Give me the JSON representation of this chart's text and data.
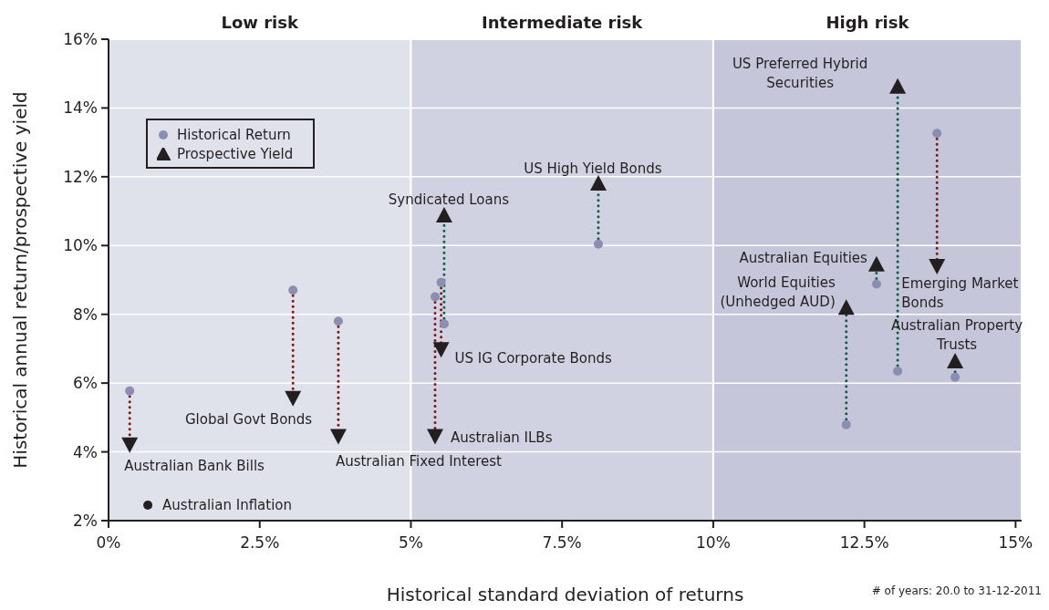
{
  "chart_data": {
    "type": "scatter",
    "xlabel": "Historical standard deviation of returns",
    "ylabel": "Historical annual return/prospective yield",
    "xlim": [
      0,
      15.1
    ],
    "ylim": [
      2,
      16
    ],
    "xticks": [
      {
        "value": 0,
        "label": "0%"
      },
      {
        "value": 2.5,
        "label": "2.5%"
      },
      {
        "value": 5,
        "label": "5%"
      },
      {
        "value": 7.5,
        "label": "7.5%"
      },
      {
        "value": 10,
        "label": "10%"
      },
      {
        "value": 12.5,
        "label": "12.5%"
      },
      {
        "value": 15,
        "label": "15%"
      }
    ],
    "yticks": [
      {
        "value": 2,
        "label": "2%"
      },
      {
        "value": 4,
        "label": "4%"
      },
      {
        "value": 6,
        "label": "6%"
      },
      {
        "value": 8,
        "label": "8%"
      },
      {
        "value": 10,
        "label": "10%"
      },
      {
        "value": 12,
        "label": "12%"
      },
      {
        "value": 14,
        "label": "14%"
      },
      {
        "value": 16,
        "label": "16%"
      }
    ],
    "grid": "y",
    "legend": "top left",
    "bands": [
      {
        "axis": "x",
        "from": 0,
        "to": 5,
        "label": "Low risk",
        "color": "#dfe1eb"
      },
      {
        "axis": "x",
        "from": 5,
        "to": 10,
        "label": "Intermediate risk",
        "color": "#d1d2e1"
      },
      {
        "axis": "x",
        "from": 10,
        "to": 15.1,
        "label": "High risk",
        "color": "#c5c6da"
      }
    ],
    "series": [
      {
        "name": "Historical Return",
        "marker": "circle",
        "color": "#8a8eb0",
        "x": [
          0.35,
          3.05,
          3.8,
          5.4,
          5.5,
          5.55,
          8.1,
          12.2,
          12.7,
          13.05,
          13.7,
          14.0
        ],
        "values": [
          5.77,
          8.7,
          7.8,
          8.51,
          8.93,
          7.72,
          10.04,
          4.79,
          8.88,
          6.35,
          13.26,
          6.17
        ]
      },
      {
        "name": "Prospective Yield",
        "marker": "triangle",
        "color": "#231f20",
        "x": [
          0.35,
          3.05,
          3.8,
          5.4,
          5.5,
          5.55,
          8.1,
          12.2,
          12.7,
          13.05,
          13.7,
          14.0
        ],
        "values": [
          4.21,
          5.56,
          4.45,
          4.45,
          6.98,
          10.88,
          11.81,
          8.2,
          9.46,
          14.63,
          9.4,
          6.64
        ]
      },
      {
        "marker": "circle",
        "color": "#231f20",
        "x": [
          0.65
        ],
        "values": [
          2.45
        ]
      },
      {
        "type": "line",
        "color": "#7a1414",
        "line_style": "dotted",
        "marker": "none",
        "x": [
          0.35,
          0.35
        ],
        "values": [
          5.77,
          4.21
        ]
      },
      {
        "type": "line",
        "color": "#7a1414",
        "line_style": "dotted",
        "marker": "none",
        "x": [
          3.05,
          3.05
        ],
        "values": [
          8.7,
          5.56
        ]
      },
      {
        "type": "line",
        "color": "#7a1414",
        "line_style": "dotted",
        "marker": "none",
        "x": [
          3.8,
          3.8
        ],
        "values": [
          7.8,
          4.45
        ]
      },
      {
        "type": "line",
        "color": "#7a1414",
        "line_style": "dotted",
        "marker": "none",
        "x": [
          5.4,
          5.4
        ],
        "values": [
          8.51,
          4.45
        ]
      },
      {
        "type": "line",
        "color": "#7a1414",
        "line_style": "dotted",
        "marker": "none",
        "x": [
          5.5,
          5.5
        ],
        "values": [
          8.93,
          6.98
        ]
      },
      {
        "type": "line",
        "color": "#0d5a45",
        "line_style": "dotted",
        "marker": "none",
        "x": [
          5.55,
          5.55
        ],
        "values": [
          7.72,
          10.88
        ]
      },
      {
        "type": "line",
        "color": "#0d5a45",
        "line_style": "dotted",
        "marker": "none",
        "x": [
          8.1,
          8.1
        ],
        "values": [
          10.04,
          11.81
        ]
      },
      {
        "type": "line",
        "color": "#0d5a45",
        "line_style": "dotted",
        "marker": "none",
        "x": [
          12.2,
          12.2
        ],
        "values": [
          4.79,
          8.2
        ]
      },
      {
        "type": "line",
        "color": "#0d5a45",
        "line_style": "dotted",
        "marker": "none",
        "x": [
          12.7,
          12.7
        ],
        "values": [
          8.88,
          9.46
        ]
      },
      {
        "type": "line",
        "color": "#0d5a45",
        "line_style": "dotted",
        "marker": "none",
        "x": [
          13.05,
          13.05
        ],
        "values": [
          6.35,
          14.63
        ]
      },
      {
        "type": "line",
        "color": "#7a1414",
        "line_style": "dotted",
        "marker": "none",
        "x": [
          13.7,
          13.7
        ],
        "values": [
          13.26,
          9.4
        ]
      },
      {
        "type": "line",
        "color": "#0d5a45",
        "line_style": "dotted",
        "marker": "none",
        "x": [
          14.0,
          14.0
        ],
        "values": [
          6.17,
          6.64
        ]
      }
    ],
    "annotations": [
      {
        "text": "Australian Bank Bills",
        "x": 0.35,
        "y": 4.21
      },
      {
        "text": "Global Govt Bonds",
        "x": 3.05,
        "y": 5.56
      },
      {
        "text": "Australian Fixed Interest",
        "x": 3.8,
        "y": 4.45
      },
      {
        "text": "Australian ILBs",
        "x": 5.4,
        "y": 4.45
      },
      {
        "text": "US IG Corporate Bonds",
        "x": 5.5,
        "y": 6.98
      },
      {
        "text": "Syndicated Loans",
        "x": 5.55,
        "y": 10.88
      },
      {
        "text": "US High Yield Bonds",
        "x": 8.1,
        "y": 11.81
      },
      {
        "text": "World Equities\n(Unhedged AUD)",
        "x": 12.2,
        "y": 8.2
      },
      {
        "text": "Australian Equities",
        "x": 12.7,
        "y": 9.46
      },
      {
        "text": "US Preferred Hybrid\nSecurities",
        "x": 13.05,
        "y": 14.63
      },
      {
        "text": "Emerging Market\nBonds",
        "x": 13.7,
        "y": 9.4
      },
      {
        "text": "Australian Property\nTrusts",
        "x": 14.0,
        "y": 6.64
      },
      {
        "text": "Australian Inflation",
        "x": 0.65,
        "y": 2.45
      },
      "# of years: 20.0 to 31-12-2011"
    ]
  }
}
